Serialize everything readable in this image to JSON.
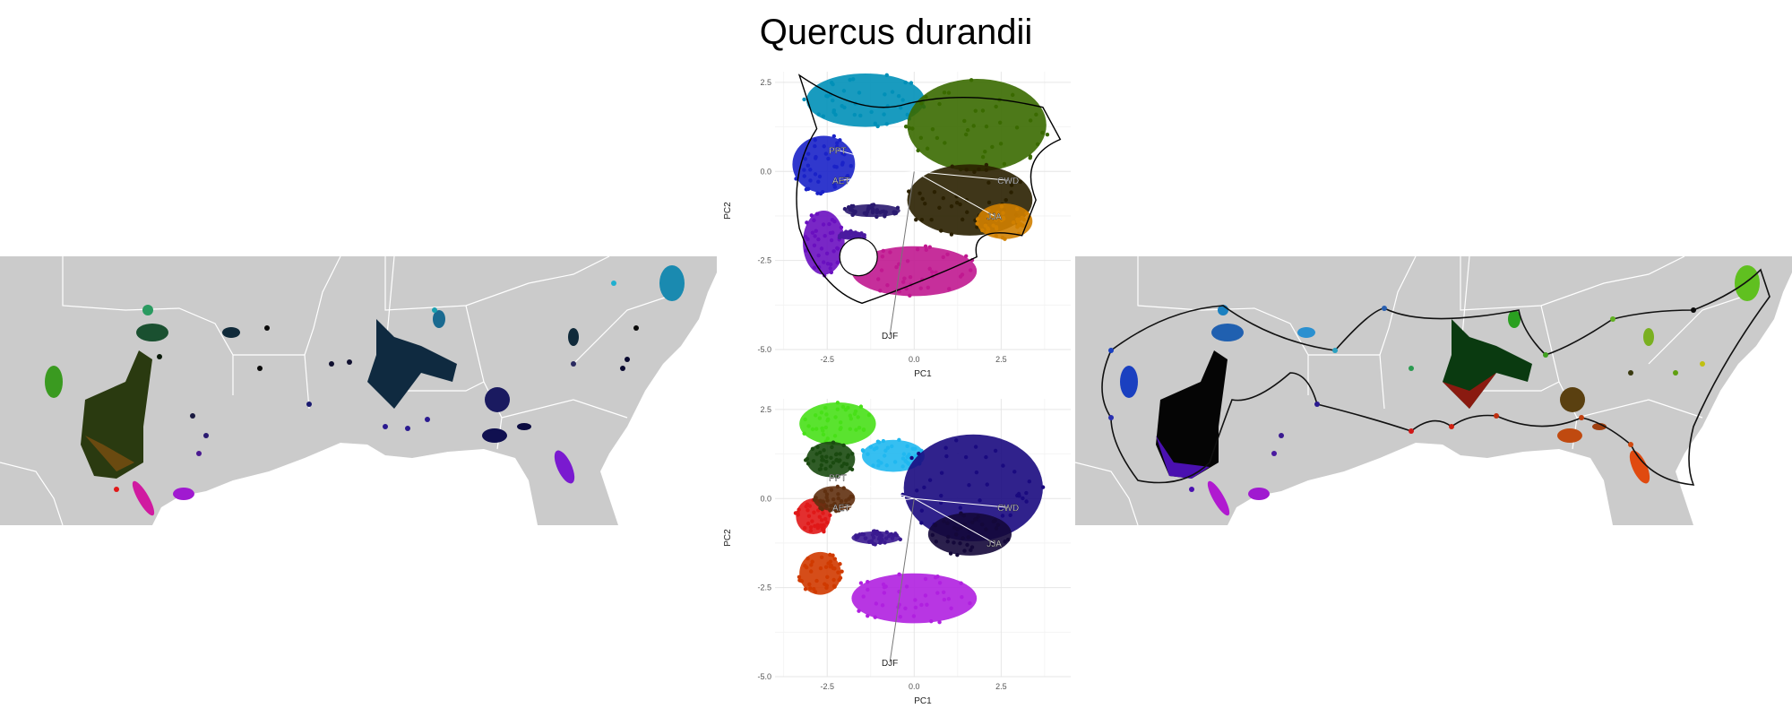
{
  "title": "Quercus durandii",
  "maps": {
    "left": {
      "label": "Geographic range colored by climate (PCA RGB)"
    },
    "right": {
      "label": "Geographic range with hull outline"
    }
  },
  "chart_data": [
    {
      "type": "scatter",
      "panel": "pca-top",
      "xlabel": "PC1",
      "ylabel": "PC2",
      "xlim": [
        -4.0,
        4.5
      ],
      "ylim": [
        -5.0,
        2.8
      ],
      "xticks": [
        "-2.5",
        "0.0",
        "2.5"
      ],
      "xtick_values": [
        -2.5,
        0.0,
        2.5
      ],
      "yticks": [
        "2.5",
        "0.0",
        "-2.5",
        "-5.0"
      ],
      "ytick_values": [
        2.5,
        0.0,
        -2.5,
        -5.0
      ],
      "grid": true,
      "loadings": [
        {
          "name": "PPT",
          "x": -2.2,
          "y": 0.6
        },
        {
          "name": "AET",
          "x": -2.1,
          "y": -0.25
        },
        {
          "name": "CWD",
          "x": 2.7,
          "y": -0.25
        },
        {
          "name": "JJA",
          "x": 2.3,
          "y": -1.25
        },
        {
          "name": "DJF",
          "x": -0.7,
          "y": -4.6
        }
      ],
      "clusters": [
        {
          "x": -1.4,
          "y": 2.0,
          "rx": 1.7,
          "ry": 0.75,
          "color": "#0090b8"
        },
        {
          "x": 1.8,
          "y": 1.3,
          "rx": 2.0,
          "ry": 1.3,
          "color": "#3a6a00"
        },
        {
          "x": -2.6,
          "y": 0.2,
          "rx": 0.9,
          "ry": 0.8,
          "color": "#1a22c8"
        },
        {
          "x": 1.6,
          "y": -0.8,
          "rx": 1.8,
          "ry": 1.0,
          "color": "#2a2000"
        },
        {
          "x": 2.6,
          "y": -1.4,
          "rx": 0.8,
          "ry": 0.5,
          "color": "#d08000"
        },
        {
          "x": -2.6,
          "y": -2.0,
          "rx": 0.6,
          "ry": 0.9,
          "color": "#6a10c0"
        },
        {
          "x": 0.0,
          "y": -2.8,
          "rx": 1.8,
          "ry": 0.7,
          "color": "#c01890"
        },
        {
          "x": -1.2,
          "y": -1.1,
          "rx": 0.8,
          "ry": 0.18,
          "color": "#2a1a70"
        },
        {
          "x": -1.8,
          "y": -1.8,
          "rx": 0.4,
          "ry": 0.12,
          "color": "#4a1aa0"
        }
      ]
    },
    {
      "type": "scatter",
      "panel": "pca-bottom",
      "xlabel": "PC1",
      "ylabel": "PC2",
      "xlim": [
        -4.0,
        4.5
      ],
      "ylim": [
        -5.0,
        2.8
      ],
      "xticks": [
        "-2.5",
        "0.0",
        "2.5"
      ],
      "xtick_values": [
        -2.5,
        0.0,
        2.5
      ],
      "yticks": [
        "2.5",
        "0.0",
        "-2.5",
        "-5.0"
      ],
      "ytick_values": [
        2.5,
        0.0,
        -2.5,
        -5.0
      ],
      "grid": true,
      "loadings": [
        {
          "name": "PPT",
          "x": -2.2,
          "y": 0.6
        },
        {
          "name": "AET",
          "x": -2.1,
          "y": -0.25
        },
        {
          "name": "CWD",
          "x": 2.7,
          "y": -0.25
        },
        {
          "name": "JJA",
          "x": 2.3,
          "y": -1.25
        },
        {
          "name": "DJF",
          "x": -0.7,
          "y": -4.6
        }
      ],
      "clusters": [
        {
          "x": -2.2,
          "y": 2.1,
          "rx": 1.1,
          "ry": 0.6,
          "color": "#48e018"
        },
        {
          "x": -0.6,
          "y": 1.2,
          "rx": 0.9,
          "ry": 0.45,
          "color": "#20b8f0"
        },
        {
          "x": -2.4,
          "y": 1.1,
          "rx": 0.7,
          "ry": 0.5,
          "color": "#1a4a10"
        },
        {
          "x": 1.7,
          "y": 0.3,
          "rx": 2.0,
          "ry": 1.5,
          "color": "#1a0a80"
        },
        {
          "x": -2.9,
          "y": -0.5,
          "rx": 0.5,
          "ry": 0.5,
          "color": "#e01818"
        },
        {
          "x": -2.3,
          "y": 0.0,
          "rx": 0.6,
          "ry": 0.35,
          "color": "#603010"
        },
        {
          "x": -2.7,
          "y": -2.1,
          "rx": 0.6,
          "ry": 0.6,
          "color": "#d03a00"
        },
        {
          "x": 0.0,
          "y": -2.8,
          "rx": 1.8,
          "ry": 0.7,
          "color": "#b020e0"
        },
        {
          "x": 1.6,
          "y": -1.0,
          "rx": 1.2,
          "ry": 0.6,
          "color": "#14083a"
        },
        {
          "x": -1.1,
          "y": -1.1,
          "rx": 0.7,
          "ry": 0.18,
          "color": "#3a1a90"
        }
      ]
    }
  ]
}
